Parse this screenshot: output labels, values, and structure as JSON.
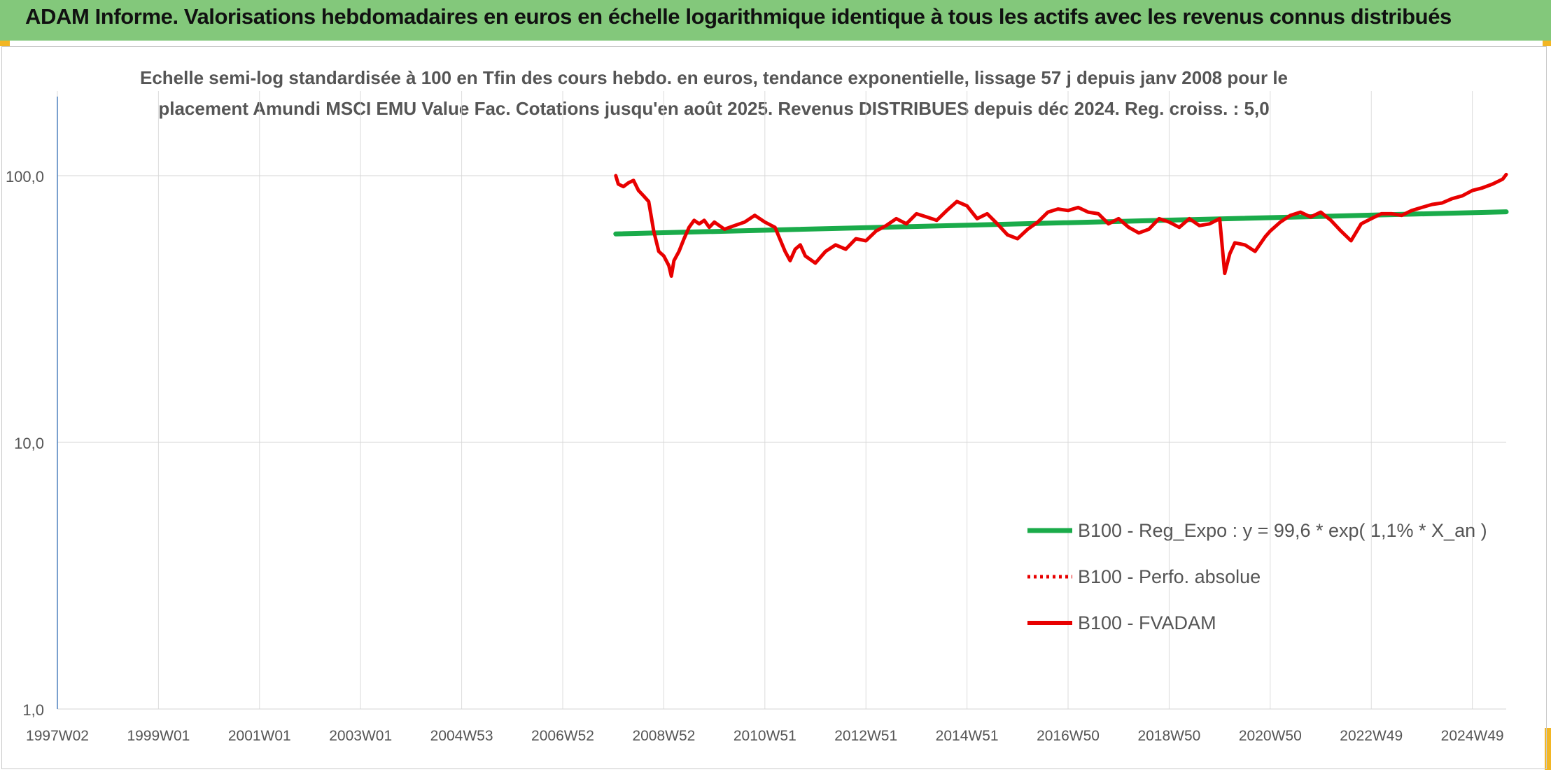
{
  "page": {
    "banner_title": "ADAM Informe. Valorisations hebdomadaires en euros en échelle logarithmique identique à tous les actifs avec les revenus connus distribués"
  },
  "colors": {
    "banner": "#83c87b",
    "accent_corner": "#f2b624",
    "trend": "#1aab4a",
    "perf": "#e80000",
    "fvadam": "#e80000"
  },
  "chart_data": {
    "type": "line",
    "title_line1": "Echelle semi-log standardisée à 100 en Tfin des cours hebdo. en euros, tendance exponentielle, lissage 57 j depuis janv 2008 pour le",
    "title_line2": "placement Amundi MSCI EMU Value Fac. Cotations jusqu'en août 2025. Revenus DISTRIBUES depuis déc 2024. Reg. croiss. : 5,0",
    "y_scale": "log",
    "ylim": [
      1,
      200
    ],
    "y_ticks": [
      {
        "value": 1,
        "label": "1,0"
      },
      {
        "value": 10,
        "label": "10,0"
      },
      {
        "value": 100,
        "label": "100,0"
      }
    ],
    "x_range": [
      1997.0,
      2025.67
    ],
    "x_ticks": [
      {
        "value": 1997.0,
        "label": "1997W02"
      },
      {
        "value": 1999.0,
        "label": "1999W01"
      },
      {
        "value": 2001.0,
        "label": "2001W01"
      },
      {
        "value": 2003.0,
        "label": "2003W01"
      },
      {
        "value": 2005.0,
        "label": "2004W53"
      },
      {
        "value": 2007.0,
        "label": "2006W52"
      },
      {
        "value": 2009.0,
        "label": "2008W52"
      },
      {
        "value": 2011.0,
        "label": "2010W51"
      },
      {
        "value": 2013.0,
        "label": "2012W51"
      },
      {
        "value": 2015.0,
        "label": "2014W51"
      },
      {
        "value": 2017.0,
        "label": "2016W50"
      },
      {
        "value": 2019.0,
        "label": "2018W50"
      },
      {
        "value": 2021.0,
        "label": "2020W50"
      },
      {
        "value": 2023.0,
        "label": "2022W49"
      },
      {
        "value": 2025.0,
        "label": "2024W49"
      }
    ],
    "vertical_gridlines": true,
    "legend_position": "bottom-right",
    "series": [
      {
        "name": "B100 - Reg_Expo : y = 99,6 * exp( 1,1% *  X_an )",
        "style": "solid-thick",
        "color": "#1aab4a",
        "x": [
          2008.05,
          2025.67
        ],
        "y": [
          60.5,
          73.2
        ]
      },
      {
        "name": "B100 - Perfo. absolue",
        "style": "dotted",
        "color": "#e80000",
        "x": [],
        "y": []
      },
      {
        "name": "B100 - FVADAM",
        "style": "solid",
        "color": "#e80000",
        "x": [
          2008.05,
          2008.1,
          2008.2,
          2008.3,
          2008.4,
          2008.5,
          2008.6,
          2008.7,
          2008.8,
          2008.9,
          2009.0,
          2009.1,
          2009.15,
          2009.2,
          2009.3,
          2009.4,
          2009.5,
          2009.6,
          2009.7,
          2009.8,
          2009.9,
          2010.0,
          2010.2,
          2010.4,
          2010.6,
          2010.8,
          2011.0,
          2011.2,
          2011.4,
          2011.5,
          2011.6,
          2011.7,
          2011.8,
          2012.0,
          2012.2,
          2012.4,
          2012.6,
          2012.8,
          2013.0,
          2013.2,
          2013.4,
          2013.6,
          2013.8,
          2014.0,
          2014.2,
          2014.4,
          2014.6,
          2014.8,
          2015.0,
          2015.2,
          2015.4,
          2015.6,
          2015.8,
          2016.0,
          2016.2,
          2016.4,
          2016.6,
          2016.8,
          2017.0,
          2017.2,
          2017.4,
          2017.6,
          2017.8,
          2018.0,
          2018.2,
          2018.4,
          2018.6,
          2018.8,
          2019.0,
          2019.2,
          2019.4,
          2019.6,
          2019.8,
          2020.0,
          2020.1,
          2020.2,
          2020.3,
          2020.5,
          2020.7,
          2020.9,
          2021.0,
          2021.2,
          2021.4,
          2021.6,
          2021.8,
          2022.0,
          2022.2,
          2022.4,
          2022.6,
          2022.8,
          2023.0,
          2023.2,
          2023.4,
          2023.6,
          2023.8,
          2024.0,
          2024.2,
          2024.4,
          2024.6,
          2024.8,
          2025.0,
          2025.2,
          2025.4,
          2025.6,
          2025.67
        ],
        "y": [
          100,
          93,
          91,
          94,
          96,
          88,
          84,
          80,
          62,
          52,
          50,
          46,
          42,
          48,
          52,
          58,
          64,
          68,
          66,
          68,
          64,
          67,
          63,
          65,
          67,
          71,
          67,
          64,
          52,
          48,
          53,
          55,
          50,
          47,
          52,
          55,
          53,
          58,
          57,
          62,
          65,
          69,
          66,
          72,
          70,
          68,
          74,
          80,
          77,
          69,
          72,
          66,
          60,
          58,
          63,
          67,
          73,
          75,
          74,
          76,
          73,
          72,
          66,
          69,
          64,
          61,
          63,
          69,
          67,
          64,
          69,
          65,
          66,
          69,
          43,
          51,
          56,
          55,
          52,
          59,
          62,
          67,
          71,
          73,
          70,
          73,
          68,
          62,
          57,
          66,
          69,
          72,
          72,
          71,
          74,
          76,
          78,
          79,
          82,
          84,
          88,
          90,
          93,
          97,
          101
        ]
      }
    ]
  }
}
